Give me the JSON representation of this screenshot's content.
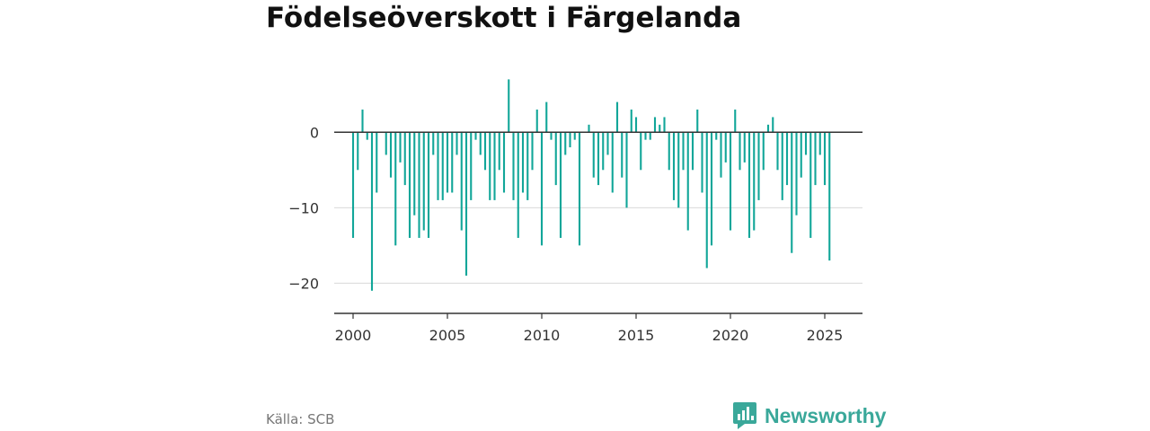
{
  "title": "Födelseöverskott i Färgelanda",
  "source": "Källa: SCB",
  "brand": {
    "name": "Newsworthy",
    "icon": "chart-speech-bubble-icon"
  },
  "colors": {
    "bar": "#12a699",
    "axis": "#333333",
    "grid": "#d9d9d9",
    "brand": "#3aa89a",
    "text": "#333333"
  },
  "chart_data": {
    "type": "bar",
    "title": "Födelseöverskott i Färgelanda",
    "xlabel": "",
    "ylabel": "",
    "xlim": [
      1999.0,
      2027.0
    ],
    "ylim": [
      -24,
      8
    ],
    "yticks": [
      0,
      -10,
      -20
    ],
    "ytick_labels": [
      "0",
      "−10",
      "−20"
    ],
    "xticks": [
      2000,
      2005,
      2010,
      2015,
      2020,
      2025
    ],
    "xtick_labels": [
      "2000",
      "2005",
      "2010",
      "2015",
      "2020",
      "2025"
    ],
    "grid": true,
    "x_start": 2000.0,
    "step_years": 0.25,
    "values": [
      -14,
      -5,
      3,
      -1,
      -21,
      -8,
      0,
      -3,
      -6,
      -15,
      -4,
      -7,
      -14,
      -11,
      -14,
      -13,
      -14,
      -3,
      -9,
      -9,
      -8,
      -8,
      -3,
      -13,
      -19,
      -9,
      -1,
      -3,
      -5,
      -9,
      -9,
      -5,
      -8,
      7,
      -9,
      -14,
      -8,
      -9,
      -5,
      3,
      -15,
      4,
      -1,
      -7,
      -14,
      -3,
      -2,
      -1,
      -15,
      0,
      1,
      -6,
      -7,
      -5,
      -3,
      -8,
      4,
      -6,
      -10,
      3,
      2,
      -5,
      -1,
      -1,
      2,
      1,
      2,
      -5,
      -9,
      -10,
      -5,
      -13,
      -5,
      3,
      -8,
      -18,
      -15,
      -1,
      -6,
      -4,
      -13,
      3,
      -5,
      -4,
      -14,
      -13,
      -9,
      -5,
      1,
      2,
      -5,
      -9,
      -7,
      -16,
      -11,
      -6,
      -3,
      -14,
      -7,
      -3,
      -7,
      -17
    ]
  }
}
